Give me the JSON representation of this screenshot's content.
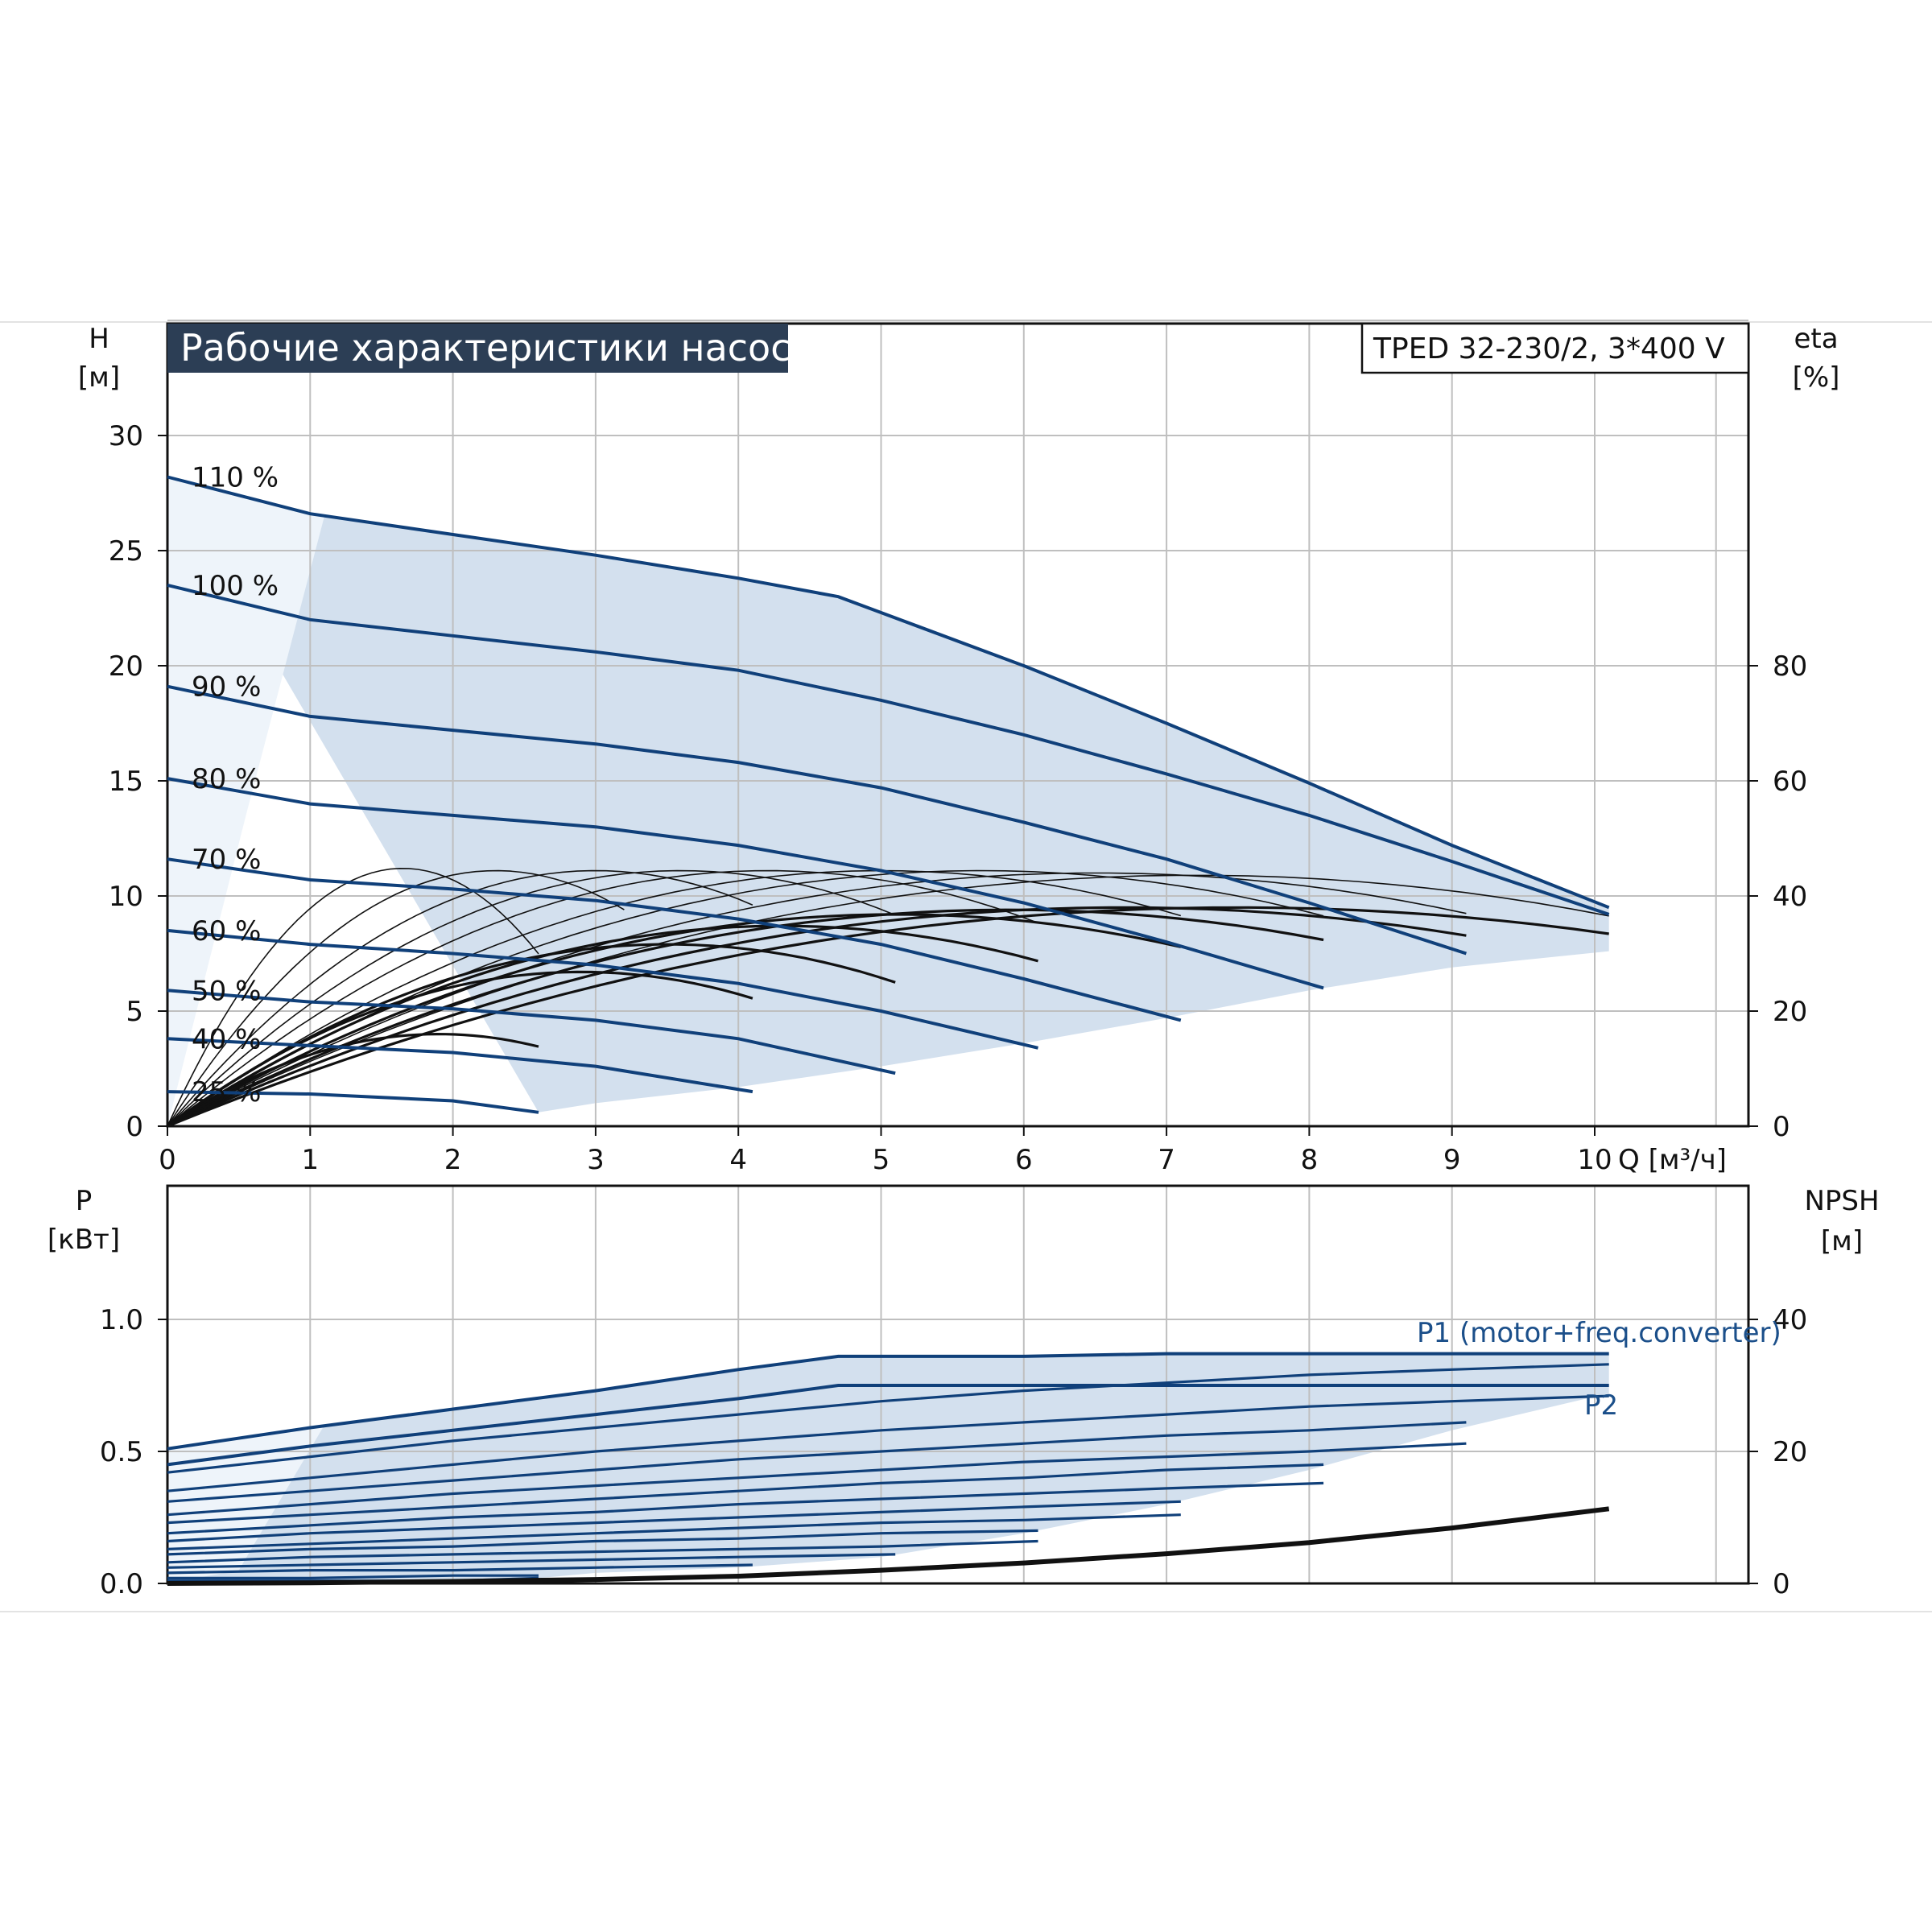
{
  "title": "Рабочие характеристики насоса",
  "model": "TPED 32-230/2, 3*400 V",
  "colors": {
    "curve_blue": "#10407a",
    "field_fill": "#d3e0ee",
    "field_light": "#eef4fa",
    "title_bg": "#2c3e55",
    "grid": "#bfbfbf",
    "black": "#111111"
  },
  "chart_data": [
    {
      "type": "line",
      "name": "head-chart",
      "xlabel": "Q [м³/ч]",
      "ylabel": [
        "H",
        "[м]"
      ],
      "y2label": [
        "eta",
        "[%]"
      ],
      "xlim": [
        0,
        11
      ],
      "ylim": [
        0,
        30
      ],
      "y2lim": [
        0,
        80
      ],
      "xticks": [
        "0",
        "1",
        "2",
        "3",
        "4",
        "5",
        "6",
        "7",
        "8",
        "9",
        "10"
      ],
      "yticks": [
        "0",
        "5",
        "10",
        "15",
        "20",
        "25",
        "30"
      ],
      "y2ticks": [
        "0",
        "20",
        "40",
        "60",
        "80"
      ],
      "grid": true,
      "series": [
        {
          "name": "110 %",
          "x": [
            0,
            1,
            2,
            3,
            4,
            4.7,
            6,
            7,
            8,
            9,
            10.1
          ],
          "y": [
            28.2,
            26.6,
            25.7,
            24.8,
            23.8,
            23.0,
            20.0,
            17.5,
            14.9,
            12.2,
            9.5
          ]
        },
        {
          "name": "100 %",
          "x": [
            0,
            1,
            2,
            3,
            4,
            5,
            6,
            7,
            8,
            9,
            10.1
          ],
          "y": [
            23.5,
            22.0,
            21.3,
            20.6,
            19.8,
            18.5,
            17.0,
            15.3,
            13.5,
            11.5,
            9.2
          ]
        },
        {
          "name": "90 %",
          "x": [
            0,
            1,
            2,
            3,
            4,
            5,
            6,
            7,
            8,
            9.1
          ],
          "y": [
            19.1,
            17.8,
            17.2,
            16.6,
            15.8,
            14.7,
            13.2,
            11.6,
            9.7,
            7.5
          ]
        },
        {
          "name": "80 %",
          "x": [
            0,
            1,
            2,
            3,
            4,
            5,
            6,
            7,
            8.1
          ],
          "y": [
            15.1,
            14.0,
            13.5,
            13.0,
            12.2,
            11.1,
            9.7,
            8.0,
            6.0
          ]
        },
        {
          "name": "70 %",
          "x": [
            0,
            1,
            2,
            3,
            4,
            5,
            6,
            7.1
          ],
          "y": [
            11.6,
            10.7,
            10.3,
            9.8,
            9.0,
            7.9,
            6.4,
            4.6
          ]
        },
        {
          "name": "60 %",
          "x": [
            0,
            1,
            2,
            3,
            4,
            5,
            6.1
          ],
          "y": [
            8.5,
            7.9,
            7.5,
            7.0,
            6.2,
            5.0,
            3.4
          ]
        },
        {
          "name": "50 %",
          "x": [
            0,
            1,
            2,
            3,
            4,
            5.1
          ],
          "y": [
            5.9,
            5.4,
            5.1,
            4.6,
            3.8,
            2.3
          ]
        },
        {
          "name": "40 %",
          "x": [
            0,
            1,
            2,
            3,
            4.1
          ],
          "y": [
            3.8,
            3.5,
            3.2,
            2.6,
            1.5
          ]
        },
        {
          "name": "25 %",
          "x": [
            0,
            1,
            2,
            2.6
          ],
          "y": [
            1.5,
            1.4,
            1.1,
            0.6
          ]
        }
      ],
      "operating_field": {
        "x": [
          0,
          0.27,
          0.5,
          1.0,
          1.1,
          2,
          3,
          4,
          4.7,
          6,
          7,
          8,
          9,
          10.1,
          10.1,
          9,
          8,
          7,
          6,
          5,
          4,
          3,
          2.6
        ],
        "y": [
          28.2,
          27.2,
          26.9,
          26.6,
          26.5,
          25.7,
          24.8,
          23.8,
          23.0,
          20.0,
          17.5,
          14.9,
          12.2,
          9.5,
          7.6,
          6.9,
          5.9,
          4.7,
          3.6,
          2.6,
          1.7,
          1.0,
          0.6
        ]
      }
    },
    {
      "type": "line",
      "name": "power-chart",
      "ylabel": [
        "P",
        "[кВт]"
      ],
      "y2label": [
        "NPSH",
        "[м]"
      ],
      "xlim": [
        0,
        11
      ],
      "ylim": [
        0,
        1.0
      ],
      "y2lim": [
        0,
        40
      ],
      "yticks": [
        "0.0",
        "0.5",
        "1.0"
      ],
      "y2ticks": [
        "0",
        "20",
        "40"
      ],
      "grid": true,
      "series": [
        {
          "name": "P1 (motor+freq.converter)",
          "x": [
            0,
            1,
            2,
            3,
            4,
            4.7,
            6,
            7,
            8,
            9,
            10.1
          ],
          "y": [
            0.51,
            0.59,
            0.66,
            0.73,
            0.81,
            0.86,
            0.86,
            0.87,
            0.87,
            0.87,
            0.87
          ]
        },
        {
          "name": "P2",
          "x": [
            0,
            1,
            2,
            3,
            4,
            4.7,
            6,
            7,
            8,
            9,
            10.1
          ],
          "y": [
            0.45,
            0.52,
            0.58,
            0.64,
            0.7,
            0.75,
            0.75,
            0.75,
            0.75,
            0.75,
            0.75
          ]
        },
        {
          "x": [
            0,
            1,
            2,
            3,
            4,
            5,
            6,
            7,
            8,
            9,
            10.1
          ],
          "y": [
            0.42,
            0.48,
            0.54,
            0.59,
            0.64,
            0.69,
            0.73,
            0.76,
            0.79,
            0.81,
            0.83
          ]
        },
        {
          "x": [
            0,
            1,
            2,
            3,
            4,
            5,
            6,
            7,
            8,
            9,
            10.1
          ],
          "y": [
            0.35,
            0.4,
            0.45,
            0.5,
            0.54,
            0.58,
            0.61,
            0.64,
            0.67,
            0.69,
            0.71
          ]
        },
        {
          "x": [
            0,
            1,
            2,
            3,
            4,
            5,
            6,
            7,
            8,
            9.1
          ],
          "y": [
            0.31,
            0.35,
            0.39,
            0.43,
            0.47,
            0.5,
            0.53,
            0.56,
            0.58,
            0.61
          ]
        },
        {
          "x": [
            0,
            1,
            2,
            3,
            4,
            5,
            6,
            7,
            8,
            9.1
          ],
          "y": [
            0.26,
            0.3,
            0.34,
            0.37,
            0.4,
            0.43,
            0.46,
            0.48,
            0.5,
            0.53
          ]
        },
        {
          "x": [
            0,
            1,
            2,
            3,
            4,
            5,
            6,
            7,
            8.1
          ],
          "y": [
            0.23,
            0.26,
            0.29,
            0.32,
            0.35,
            0.38,
            0.4,
            0.43,
            0.45
          ]
        },
        {
          "x": [
            0,
            1,
            2,
            3,
            4,
            5,
            6,
            7,
            8.1
          ],
          "y": [
            0.19,
            0.22,
            0.25,
            0.27,
            0.3,
            0.32,
            0.34,
            0.36,
            0.38
          ]
        },
        {
          "x": [
            0,
            1,
            2,
            3,
            4,
            5,
            6,
            7.1
          ],
          "y": [
            0.16,
            0.19,
            0.21,
            0.23,
            0.25,
            0.27,
            0.29,
            0.31
          ]
        },
        {
          "x": [
            0,
            1,
            2,
            3,
            4,
            5,
            6,
            7.1
          ],
          "y": [
            0.13,
            0.15,
            0.17,
            0.19,
            0.21,
            0.23,
            0.24,
            0.26
          ]
        },
        {
          "x": [
            0,
            1,
            2,
            3,
            4,
            5,
            6.1
          ],
          "y": [
            0.11,
            0.13,
            0.14,
            0.16,
            0.17,
            0.19,
            0.2
          ]
        },
        {
          "x": [
            0,
            1,
            2,
            3,
            4,
            5,
            6.1
          ],
          "y": [
            0.08,
            0.1,
            0.11,
            0.12,
            0.13,
            0.14,
            0.16
          ]
        },
        {
          "x": [
            0,
            1,
            2,
            3,
            4,
            5.1
          ],
          "y": [
            0.06,
            0.07,
            0.08,
            0.09,
            0.1,
            0.11
          ]
        },
        {
          "x": [
            0,
            1,
            2,
            3,
            4.1
          ],
          "y": [
            0.04,
            0.05,
            0.05,
            0.06,
            0.07
          ]
        },
        {
          "x": [
            0,
            1,
            2,
            2.6
          ],
          "y": [
            0.02,
            0.02,
            0.03,
            0.03
          ]
        },
        {
          "x": [
            0,
            1,
            2,
            2.6
          ],
          "y": [
            0.01,
            0.01,
            0.01,
            0.02
          ]
        }
      ],
      "npsh_curve": {
        "x": [
          0,
          1,
          2,
          3,
          4,
          5,
          6,
          7,
          8,
          9,
          10.1
        ],
        "y": [
          0.0,
          0.1,
          0.3,
          0.6,
          1.1,
          2.0,
          3.1,
          4.5,
          6.2,
          8.4,
          11.3
        ]
      },
      "operating_field": {
        "x": [
          0,
          0.5,
          1,
          2,
          3,
          4,
          4.7,
          6,
          7,
          8,
          9,
          10.1,
          10.1,
          9,
          8,
          7,
          6,
          5,
          4,
          3,
          2.6,
          0
        ],
        "y": [
          0.51,
          0.55,
          0.59,
          0.66,
          0.73,
          0.81,
          0.86,
          0.86,
          0.87,
          0.87,
          0.87,
          0.87,
          0.72,
          0.58,
          0.43,
          0.3,
          0.19,
          0.1,
          0.06,
          0.04,
          0.02,
          0.0
        ]
      }
    }
  ]
}
